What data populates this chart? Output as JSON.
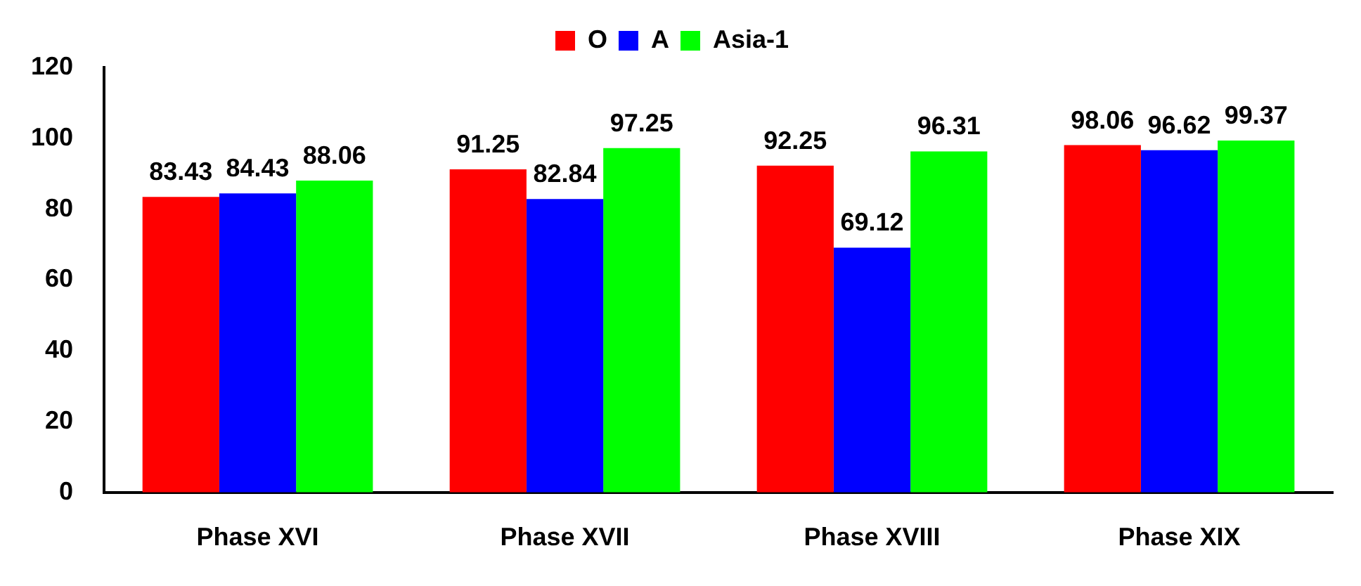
{
  "chart_data": {
    "type": "bar",
    "categories": [
      "Phase XVI",
      "Phase XVII",
      "Phase XVIII",
      "Phase XIX"
    ],
    "series": [
      {
        "name": "O",
        "color": "#ff0000",
        "values": [
          83.43,
          91.25,
          92.25,
          98.06
        ]
      },
      {
        "name": "A",
        "color": "#0000ff",
        "values": [
          84.43,
          82.84,
          69.12,
          96.62
        ]
      },
      {
        "name": "Asia-1",
        "color": "#00ff00",
        "values": [
          88.06,
          97.25,
          96.31,
          99.37
        ]
      }
    ],
    "ylim": [
      0,
      120
    ],
    "yticks": [
      0,
      20,
      40,
      60,
      80,
      100,
      120
    ],
    "grid": false,
    "legend": "top",
    "data_labels": true
  }
}
